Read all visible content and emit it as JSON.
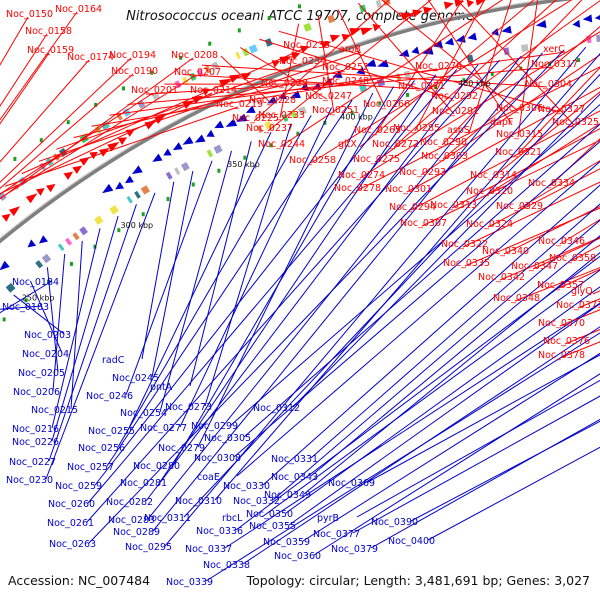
{
  "title": "Nitrosococcus oceani ATCC 19707, complete genome",
  "footer": {
    "accession": "Accession: NC_007484",
    "summary": "Topology: circular; Length: 3,481,691 bp; Genes: 3,027"
  },
  "colors": {
    "forward": "#ff0000",
    "reverse": "#0000cc",
    "backbone": "#7f7f7f",
    "marker": "#1f9e1f",
    "cog_palette": [
      "#8a6fd1",
      "#47c7c7",
      "#ff66cc",
      "#33cc66",
      "#f2e34c",
      "#9999cc",
      "#66ccff",
      "#e4824e",
      "#c0c0c0",
      "#2d6f86",
      "#a0e040"
    ]
  },
  "ticks": [
    {
      "label": "200 kbp"
    },
    {
      "label": "250 kbp"
    },
    {
      "label": "300 kbp"
    },
    {
      "label": "350 kbp"
    },
    {
      "label": "400 kbp"
    },
    {
      "label": "450 kbp"
    }
  ],
  "red_labels": [
    "Noc_0150",
    "Noc_0164",
    "Noc_0158",
    "Noc_0159",
    "Noc_0174",
    "Noc_0194",
    "Noc_0208",
    "Noc_0190",
    "Noc_0207",
    "Noc_0201",
    "Noc_0214",
    "Noc_0219",
    "Noc_0235",
    "aroB",
    "Noc_0234",
    "Noc_0252",
    "Noc_0276",
    "xerC",
    "Noc_0317",
    "Noc_0229",
    "Noc_0248",
    "Noc_0271",
    "Noc_0304",
    "Noc_0228",
    "Noc_0247",
    "Noc_0292",
    "Noc_0327",
    "Noc_0233",
    "Noc_0251",
    "Noc_0266",
    "Noc_0291",
    "Noc_0306",
    "Noc_0225",
    "dapF",
    "Noc_0325",
    "Noc_0237",
    "Noc_0265",
    "Noc_0285",
    "aspS",
    "Noc_0315",
    "Noc_0244",
    "gltX",
    "Noc_0272",
    "Noc_0290",
    "Noc_0258",
    "Noc_0275",
    "Noc_0303",
    "Noc_0321",
    "Noc_0274",
    "Noc_0293",
    "Noc_0314",
    "Noc_0334",
    "Noc_0278",
    "Noc_0301",
    "Noc_0320",
    "Noc_0294",
    "Noc_0313",
    "Noc_0329",
    "Noc_0307",
    "Noc_0324",
    "Noc_0346",
    "Noc_0322",
    "Noc_0340",
    "Noc_0358",
    "Noc_0335",
    "Noc_0347",
    "Noc_0342",
    "Noc_0357",
    "glyQ",
    "Noc_0348",
    "Noc_0371",
    "Noc_0370",
    "Noc_0376",
    "Noc_0378"
  ],
  "blue_labels": [
    "Noc_0184",
    "Noc_0183",
    "Noc_0203",
    "Noc_0204",
    "Noc_0205",
    "Noc_0206",
    "Noc_0215",
    "Noc_0216",
    "Noc_0226",
    "Noc_0227",
    "Noc_0230",
    "radC",
    "Noc_0245",
    "Noc_0246",
    "Noc_0254",
    "pntA",
    "Noc_0255",
    "Noc_0273",
    "Noc_0256",
    "Noc_0277",
    "Noc_0257",
    "Noc_0279",
    "Noc_0280",
    "Noc_0259",
    "Noc_0281",
    "Noc_0260",
    "Noc_0282",
    "Noc_0261",
    "Noc_0283",
    "Noc_0289",
    "Noc_0263",
    "Noc_0295",
    "Noc_0310",
    "Noc_0311",
    "Noc_0312",
    "Noc_0299",
    "Noc_0305",
    "Noc_0308",
    "coaE",
    "Noc_0330",
    "Noc_0331",
    "Noc_0332",
    "Noc_0343",
    "Noc_0349",
    "Noc_0336",
    "rbcL",
    "Noc_0350",
    "Noc_0355",
    "Noc_0337",
    "Noc_0338",
    "Noc_0339",
    "Noc_0359",
    "Noc_0360",
    "Noc_0369",
    "pyrB",
    "Noc_0377",
    "Noc_0379",
    "Noc_0390",
    "Noc_0400"
  ]
}
